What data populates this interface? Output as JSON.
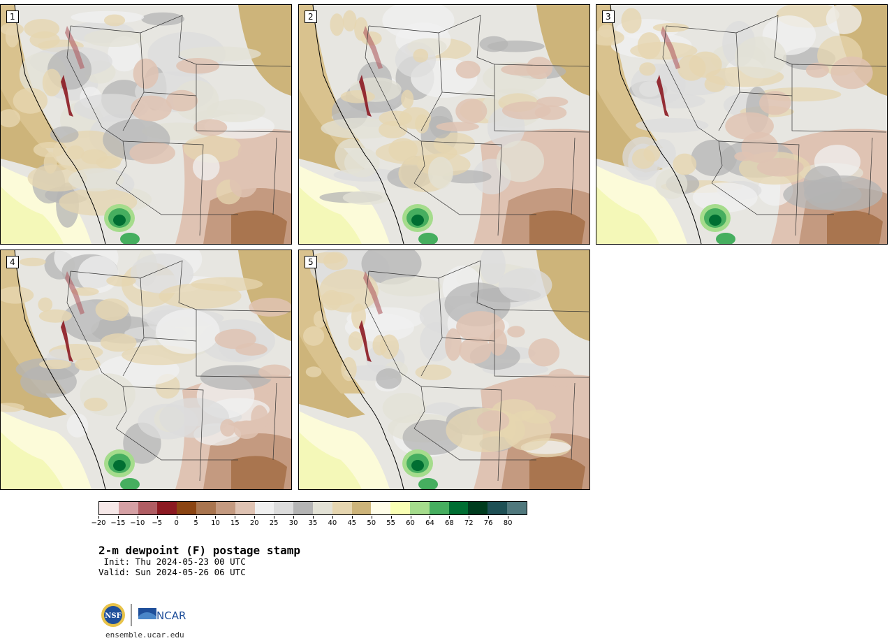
{
  "title": "2-m dewpoint (F) postage stamp",
  "init": " Init: Thu 2024-05-23 00 UTC",
  "valid": "Valid: Sun 2024-05-26 06 UTC",
  "website": "ensemble.ucar.edu",
  "logos": {
    "nsf": "NSF",
    "ncar": "NCAR"
  },
  "panels": [
    {
      "label": "1"
    },
    {
      "label": "2"
    },
    {
      "label": "3"
    },
    {
      "label": "4"
    },
    {
      "label": "5"
    }
  ],
  "colorbar": {
    "ticks": [
      "−20",
      "−15",
      "−10",
      "−5",
      "0",
      "5",
      "10",
      "15",
      "20",
      "25",
      "30",
      "35",
      "40",
      "45",
      "50",
      "55",
      "60",
      "64",
      "68",
      "72",
      "76",
      "80"
    ],
    "colors": [
      "#f6e8e8",
      "#d5a0a4",
      "#b05d63",
      "#8c1a22",
      "#8b4513",
      "#a9754f",
      "#c49a80",
      "#dfc3b3",
      "#f0f0f0",
      "#dcdcdc",
      "#b4b4b4",
      "#e3e2d6",
      "#e6d6b0",
      "#cdb47a",
      "#fffde8",
      "#f9ffb4",
      "#a5dc8c",
      "#46ae5f",
      "#006e32",
      "#003c1e",
      "#1e5055",
      "#50787d"
    ]
  }
}
